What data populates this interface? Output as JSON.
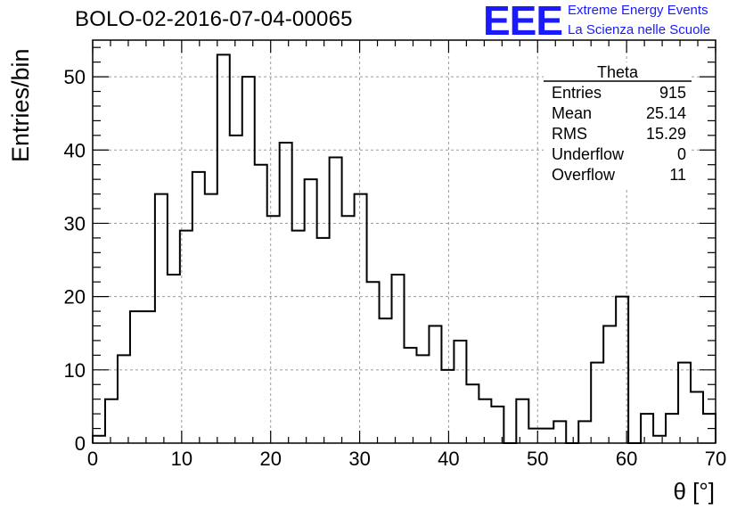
{
  "header": {
    "title": "BOLO-02-2016-07-04-00065",
    "logo_text": "EEE",
    "logo_line1": "Extreme Energy Events",
    "logo_line2": "La Scienza nelle Scuole",
    "accent_color": "#1a1aff"
  },
  "chart_data": {
    "type": "bar",
    "histogram": true,
    "title": "BOLO-02-2016-07-04-00065",
    "xlabel": "θ [°]",
    "ylabel": "Entries/bin",
    "xlim": [
      0,
      70
    ],
    "ylim": [
      0,
      55
    ],
    "x_ticks": [
      0,
      10,
      20,
      30,
      40,
      50,
      60,
      70
    ],
    "y_ticks": [
      0,
      10,
      20,
      30,
      40,
      50
    ],
    "grid": true,
    "bin_width": 1.4,
    "bin_edges_start": 0,
    "values": [
      1,
      6,
      12,
      18,
      18,
      34,
      23,
      29,
      37,
      34,
      53,
      42,
      50,
      38,
      31,
      41,
      29,
      36,
      28,
      39,
      31,
      34,
      22,
      17,
      23,
      13,
      12,
      16,
      10,
      14,
      8,
      6,
      5,
      0,
      6,
      2,
      2,
      3,
      0,
      3,
      11,
      16,
      20,
      0,
      4,
      1,
      4,
      11,
      7,
      4
    ],
    "stats_box": {
      "name": "Theta",
      "entries": [
        {
          "label": "Entries",
          "value": "915"
        },
        {
          "label": "Mean",
          "value": "25.14"
        },
        {
          "label": "RMS",
          "value": "15.29"
        },
        {
          "label": "Underflow",
          "value": "0"
        },
        {
          "label": "Overflow",
          "value": "11"
        }
      ]
    }
  }
}
